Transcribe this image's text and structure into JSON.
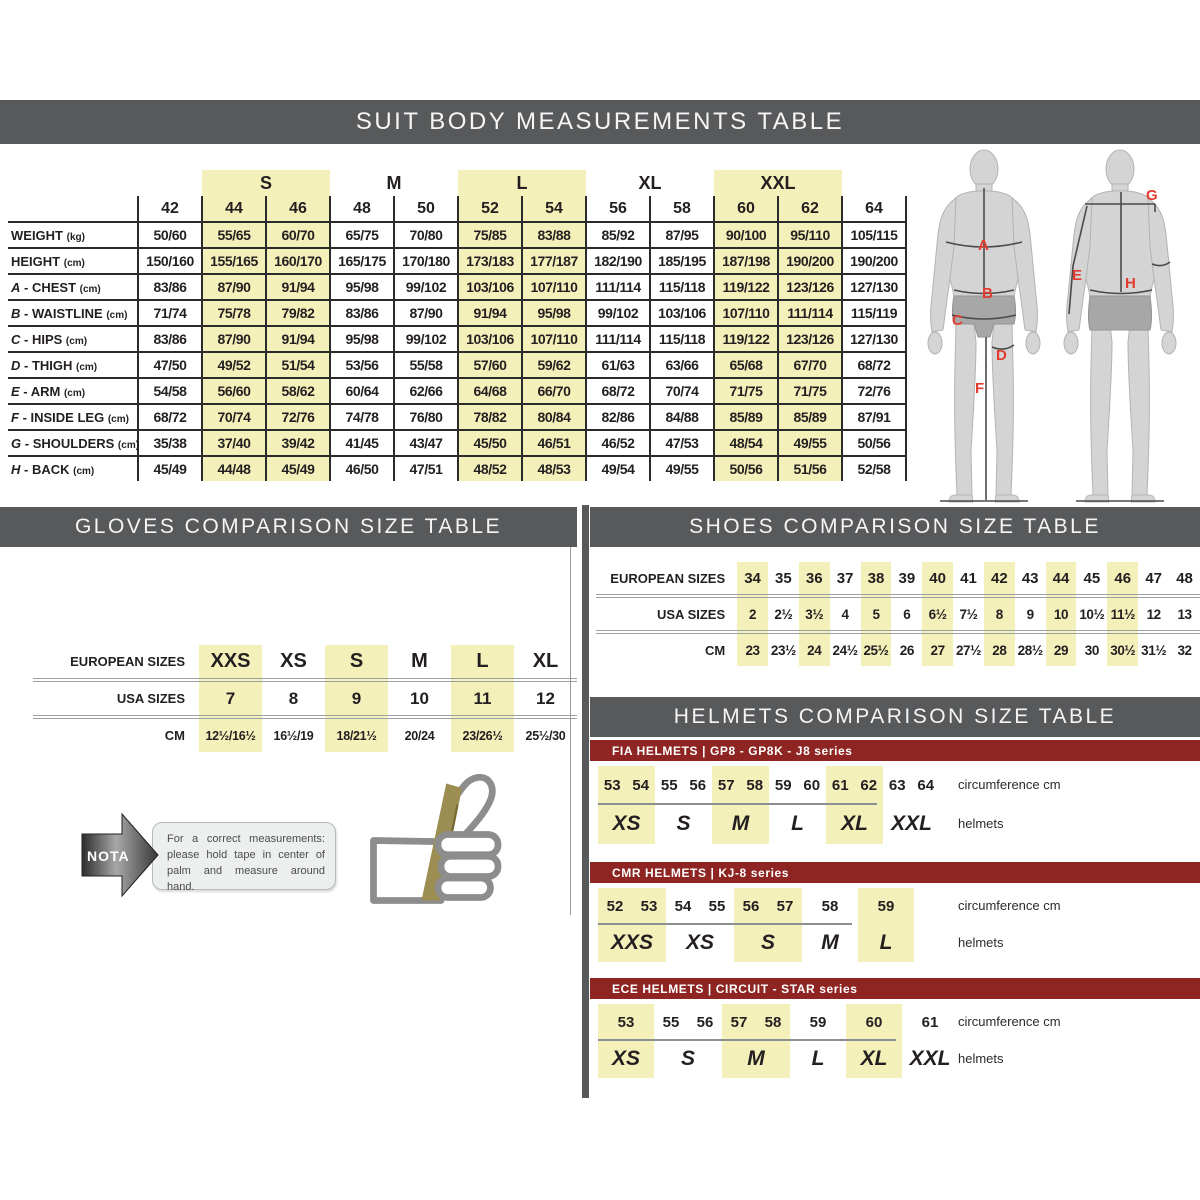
{
  "titles": {
    "suit": "SUIT BODY MEASUREMENTS TABLE",
    "gloves": "GLOVES COMPARISON SIZE TABLE",
    "shoes": "SHOES COMPARISON SIZE TABLE",
    "helmets": "HELMETS COMPARISON SIZE TABLE"
  },
  "colors": {
    "header_gray": "#58595b",
    "red_bar": "#8e2522",
    "highlight_yellow": "#f4f0ba",
    "letter_red": "#e23b30"
  },
  "suit_table": {
    "header_groups": [
      {
        "label": "",
        "span": 1,
        "hl": false
      },
      {
        "label": "S",
        "span": 2,
        "hl": true
      },
      {
        "label": "M",
        "span": 2,
        "hl": false
      },
      {
        "label": "L",
        "span": 2,
        "hl": true
      },
      {
        "label": "XL",
        "span": 2,
        "hl": false
      },
      {
        "label": "XXL",
        "span": 2,
        "hl": true
      },
      {
        "label": "",
        "span": 1,
        "hl": false
      }
    ],
    "sizes": [
      "42",
      "44",
      "46",
      "48",
      "50",
      "52",
      "54",
      "56",
      "58",
      "60",
      "62",
      "64"
    ],
    "highlight_cols": [
      1,
      2,
      5,
      6,
      9,
      10
    ],
    "rows": [
      {
        "letter": "",
        "name": "WEIGHT",
        "unit": "(kg)",
        "values": [
          "50/60",
          "55/65",
          "60/70",
          "65/75",
          "70/80",
          "75/85",
          "83/88",
          "85/92",
          "87/95",
          "90/100",
          "95/110",
          "105/115"
        ]
      },
      {
        "letter": "",
        "name": "HEIGHT",
        "unit": "(cm)",
        "values": [
          "150/160",
          "155/165",
          "160/170",
          "165/175",
          "170/180",
          "173/183",
          "177/187",
          "182/190",
          "185/195",
          "187/198",
          "190/200",
          "190/200"
        ]
      },
      {
        "letter": "A",
        "name": "CHEST",
        "unit": "(cm)",
        "values": [
          "83/86",
          "87/90",
          "91/94",
          "95/98",
          "99/102",
          "103/106",
          "107/110",
          "111/114",
          "115/118",
          "119/122",
          "123/126",
          "127/130"
        ]
      },
      {
        "letter": "B",
        "name": "WAISTLINE",
        "unit": "(cm)",
        "values": [
          "71/74",
          "75/78",
          "79/82",
          "83/86",
          "87/90",
          "91/94",
          "95/98",
          "99/102",
          "103/106",
          "107/110",
          "111/114",
          "115/119"
        ]
      },
      {
        "letter": "C",
        "name": "HIPS",
        "unit": "(cm)",
        "values": [
          "83/86",
          "87/90",
          "91/94",
          "95/98",
          "99/102",
          "103/106",
          "107/110",
          "111/114",
          "115/118",
          "119/122",
          "123/126",
          "127/130"
        ]
      },
      {
        "letter": "D",
        "name": "THIGH",
        "unit": "(cm)",
        "values": [
          "47/50",
          "49/52",
          "51/54",
          "53/56",
          "55/58",
          "57/60",
          "59/62",
          "61/63",
          "63/66",
          "65/68",
          "67/70",
          "68/72"
        ]
      },
      {
        "letter": "E",
        "name": "ARM",
        "unit": "(cm)",
        "values": [
          "54/58",
          "56/60",
          "58/62",
          "60/64",
          "62/66",
          "64/68",
          "66/70",
          "68/72",
          "70/74",
          "71/75",
          "71/75",
          "72/76"
        ]
      },
      {
        "letter": "F",
        "name": "INSIDE LEG",
        "unit": "(cm)",
        "values": [
          "68/72",
          "70/74",
          "72/76",
          "74/78",
          "76/80",
          "78/82",
          "80/84",
          "82/86",
          "84/88",
          "85/89",
          "85/89",
          "87/91"
        ]
      },
      {
        "letter": "G",
        "name": "SHOULDERS",
        "unit": "(cm)",
        "values": [
          "35/38",
          "37/40",
          "39/42",
          "41/45",
          "43/47",
          "45/50",
          "46/51",
          "46/52",
          "47/53",
          "48/54",
          "49/55",
          "50/56"
        ]
      },
      {
        "letter": "H",
        "name": "BACK",
        "unit": "(cm)",
        "values": [
          "45/49",
          "44/48",
          "45/49",
          "46/50",
          "47/51",
          "48/52",
          "48/53",
          "49/54",
          "49/55",
          "50/56",
          "51/56",
          "52/58"
        ]
      }
    ]
  },
  "figures": {
    "front_letters": [
      "A",
      "B",
      "C",
      "D",
      "F"
    ],
    "back_letters": [
      "G",
      "E",
      "H"
    ]
  },
  "gloves_table": {
    "row_labels": [
      "EUROPEAN SIZES",
      "USA SIZES",
      "CM"
    ],
    "european": [
      "XXS",
      "XS",
      "S",
      "M",
      "L",
      "XL"
    ],
    "usa": [
      "7",
      "8",
      "9",
      "10",
      "11",
      "12"
    ],
    "cm": [
      "12½/16½",
      "16½/19",
      "18/21½",
      "20/24",
      "23/26½",
      "25½/30"
    ],
    "highlight_cols": [
      0,
      2,
      4
    ]
  },
  "shoes_table": {
    "row_labels": [
      "EUROPEAN SIZES",
      "USA SIZES",
      "CM"
    ],
    "european": [
      "34",
      "35",
      "36",
      "37",
      "38",
      "39",
      "40",
      "41",
      "42",
      "43",
      "44",
      "45",
      "46",
      "47",
      "48"
    ],
    "usa": [
      "2",
      "2½",
      "3½",
      "4",
      "5",
      "6",
      "6½",
      "7½",
      "8",
      "9",
      "10",
      "10½",
      "11½",
      "12",
      "13"
    ],
    "cm": [
      "23",
      "23½",
      "24",
      "24½",
      "25½",
      "26",
      "27",
      "27½",
      "28",
      "28½",
      "29",
      "30",
      "30½",
      "31½",
      "32"
    ],
    "highlight_cols": [
      0,
      2,
      4,
      6,
      8,
      10,
      12
    ]
  },
  "helmets": {
    "circ_label": "circumference cm",
    "size_label": "helmets",
    "sections": [
      {
        "header": "FIA HELMETS | GP8 - GP8K - J8 series",
        "groups": [
          {
            "numbers": [
              "53",
              "54"
            ],
            "size": "XS",
            "hl": true
          },
          {
            "numbers": [
              "55",
              "56"
            ],
            "size": "S",
            "hl": false
          },
          {
            "numbers": [
              "57",
              "58"
            ],
            "size": "M",
            "hl": true
          },
          {
            "numbers": [
              "59",
              "60"
            ],
            "size": "L",
            "hl": false
          },
          {
            "numbers": [
              "61",
              "62"
            ],
            "size": "XL",
            "hl": true
          },
          {
            "numbers": [
              "63",
              "64"
            ],
            "size": "XXL",
            "hl": false
          }
        ]
      },
      {
        "header": "CMR HELMETS | KJ-8 series",
        "groups": [
          {
            "numbers": [
              "52",
              "53"
            ],
            "size": "XXS",
            "hl": true
          },
          {
            "numbers": [
              "54",
              "55"
            ],
            "size": "XS",
            "hl": false
          },
          {
            "numbers": [
              "56",
              "57"
            ],
            "size": "S",
            "hl": true
          },
          {
            "numbers": [
              "58"
            ],
            "size": "M",
            "hl": false
          },
          {
            "numbers": [
              "59"
            ],
            "size": "L",
            "hl": true
          }
        ]
      },
      {
        "header": "ECE HELMETS | CIRCUIT - STAR series",
        "groups": [
          {
            "numbers": [
              "53"
            ],
            "size": "XS",
            "hl": true
          },
          {
            "numbers": [
              "55",
              "56"
            ],
            "size": "S",
            "hl": false
          },
          {
            "numbers": [
              "57",
              "58"
            ],
            "size": "M",
            "hl": true
          },
          {
            "numbers": [
              "59"
            ],
            "size": "L",
            "hl": false
          },
          {
            "numbers": [
              "60"
            ],
            "size": "XL",
            "hl": true
          },
          {
            "numbers": [
              "61"
            ],
            "size": "XXL",
            "hl": false
          }
        ]
      }
    ]
  },
  "nota": {
    "label": "NOTA",
    "text": "For a correct measurements: please hold tape in center of palm and measure around hand."
  }
}
